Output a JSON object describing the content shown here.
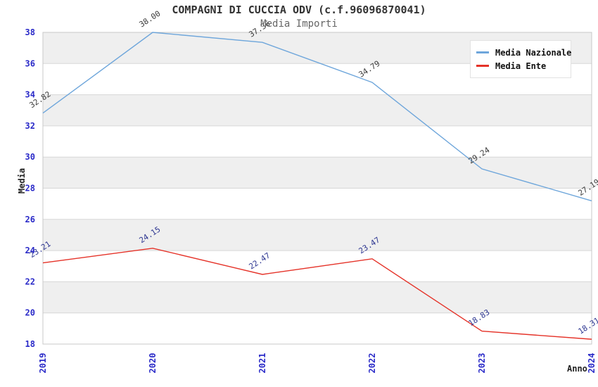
{
  "chart_data": {
    "type": "line",
    "title": "COMPAGNI DI CUCCIA ODV (c.f.96096870041)",
    "subtitle": "Media Importi",
    "xlabel": "Anno",
    "ylabel": "Media",
    "categories": [
      "2019",
      "2020",
      "2021",
      "2022",
      "2023",
      "2024"
    ],
    "series": [
      {
        "name": "Media Nazionale",
        "color": "#6ea6db",
        "label_color": "#3a3a3a",
        "values": [
          32.82,
          38.0,
          37.36,
          34.79,
          29.24,
          27.19
        ]
      },
      {
        "name": "Media Ente",
        "color": "#e53228",
        "label_color": "#2b3490",
        "values": [
          23.21,
          24.15,
          22.47,
          23.47,
          18.83,
          18.31
        ]
      }
    ],
    "ylim": [
      18,
      38
    ],
    "ytick_step": 2,
    "grid": true,
    "band_shading": "alternating horizontal rows",
    "legend_position": "top-right",
    "colors": {
      "tick": "#2a2ac8",
      "band": "#efefef",
      "grid": "#d7d7d7",
      "border": "#c8c8c8"
    }
  }
}
